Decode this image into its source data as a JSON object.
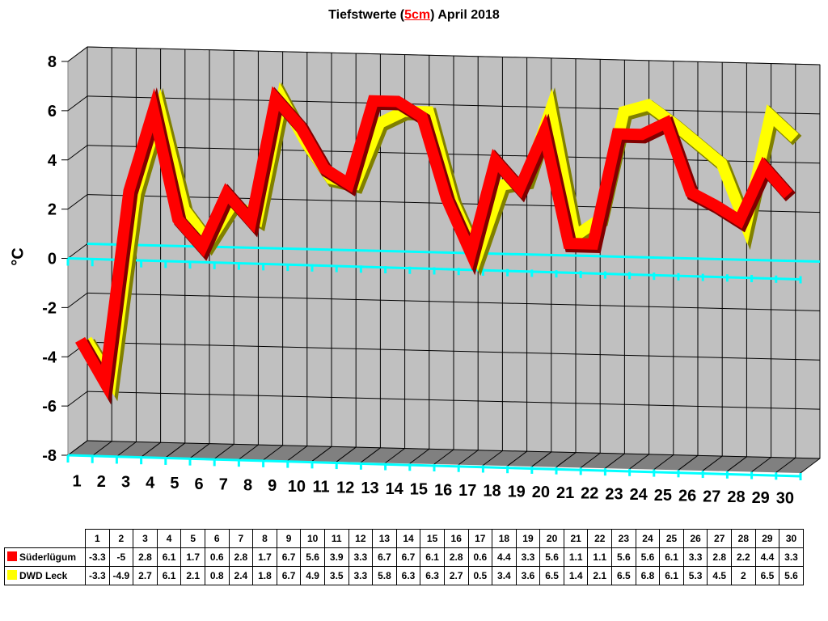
{
  "title": {
    "prefix": "Tiefstwerte (",
    "highlight": "5cm",
    "suffix": ") April 2018"
  },
  "axis": {
    "ylabel": "°C"
  },
  "colors": {
    "s1": "#ff0000",
    "s1_dark": "#800000",
    "s2": "#ffff00",
    "s2_dark": "#808000",
    "wall": "#c0c0c0",
    "floor": "#808080",
    "zero_line": "#00ffff"
  },
  "chart_data": {
    "type": "line",
    "title": "Tiefstwerte (5cm) April 2018",
    "xlabel": "",
    "ylabel": "°C",
    "ylim": [
      -8,
      8
    ],
    "yticks": [
      -8,
      -6,
      -4,
      -2,
      0,
      2,
      4,
      6,
      8
    ],
    "grid": true,
    "legend_position": "data-table-below",
    "categories": [
      "1",
      "2",
      "3",
      "4",
      "5",
      "6",
      "7",
      "8",
      "9",
      "10",
      "11",
      "12",
      "13",
      "14",
      "15",
      "16",
      "17",
      "18",
      "19",
      "20",
      "21",
      "22",
      "23",
      "24",
      "25",
      "26",
      "27",
      "28",
      "29",
      "30"
    ],
    "series": [
      {
        "name": "Süderlügum",
        "color": "#ff0000",
        "values": [
          -3.3,
          -5,
          2.8,
          6.1,
          1.7,
          0.6,
          2.8,
          1.7,
          6.7,
          5.6,
          3.9,
          3.3,
          6.7,
          6.7,
          6.1,
          2.8,
          0.6,
          4.4,
          3.3,
          5.6,
          1.1,
          1.1,
          5.6,
          5.6,
          6.1,
          3.3,
          2.8,
          2.2,
          4.4,
          3.3
        ]
      },
      {
        "name": "DWD Leck",
        "color": "#ffff00",
        "values": [
          -3.3,
          -4.9,
          2.7,
          6.1,
          2.1,
          0.8,
          2.4,
          1.8,
          6.7,
          4.9,
          3.5,
          3.3,
          5.8,
          6.3,
          6.3,
          2.7,
          0.5,
          3.4,
          3.6,
          6.5,
          1.4,
          2.1,
          6.5,
          6.8,
          6.1,
          5.3,
          4.5,
          2,
          6.5,
          5.6
        ]
      }
    ]
  }
}
